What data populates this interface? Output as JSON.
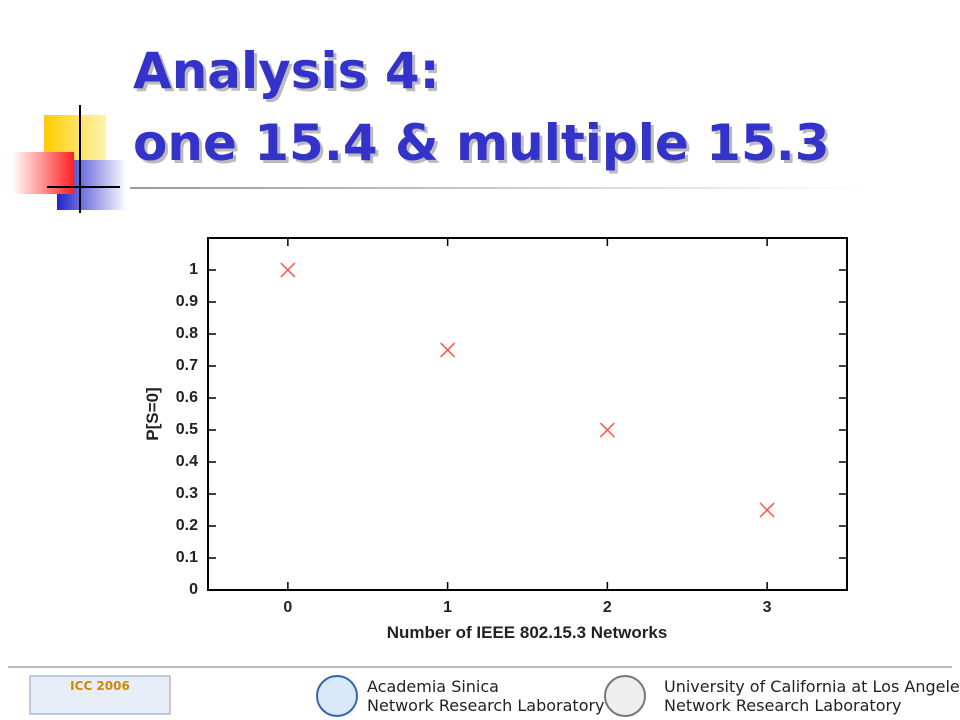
{
  "slide_title": [
    "Analysis 4:",
    "one 15.4 & multiple 15.3"
  ],
  "chart_data": {
    "type": "scatter",
    "xlabel": "Number of IEEE 802.15.3 Networks",
    "ylabel": "P[S=0]",
    "x": [
      0,
      1,
      2,
      3
    ],
    "series": [
      {
        "color": "#ff4d4d",
        "values": [
          1,
          0.75,
          0.5,
          0.25
        ]
      }
    ],
    "xlim": [
      -0.5,
      3.5
    ],
    "xticks": [
      0,
      1,
      2,
      3
    ],
    "ylim": [
      0,
      1.1
    ],
    "yticks": [
      0,
      0.1,
      0.2,
      0.3,
      0.4,
      0.5,
      0.6,
      0.7,
      0.8,
      0.9,
      1
    ]
  },
  "footer": {
    "logo": "ICC 2006",
    "left": [
      "Academia Sinica",
      "Network Research Laboratory"
    ],
    "right": [
      "University of California at Los Angeles",
      "Network Research Laboratory"
    ]
  }
}
